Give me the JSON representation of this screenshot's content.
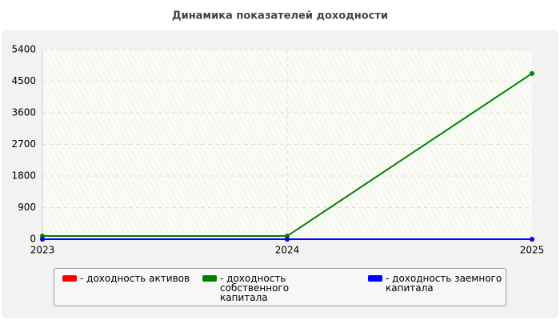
{
  "chart_data": {
    "type": "line",
    "title": "Динамика показателей доходности",
    "categories": [
      "2023",
      "2024",
      "2025"
    ],
    "series": [
      {
        "name": "- доходность активов",
        "color": "#ff0000",
        "values": [
          0,
          0,
          0
        ]
      },
      {
        "name": "- доходность собственного капитала",
        "color": "#008000",
        "values": [
          90,
          90,
          4720
        ]
      },
      {
        "name": "- доходность заемного капитала",
        "color": "#0000ff",
        "values": [
          0,
          0,
          0
        ]
      }
    ],
    "ylim": [
      0,
      5400
    ],
    "yticks": [
      0,
      900,
      1800,
      2700,
      3600,
      4500,
      5400
    ],
    "grid": true
  }
}
